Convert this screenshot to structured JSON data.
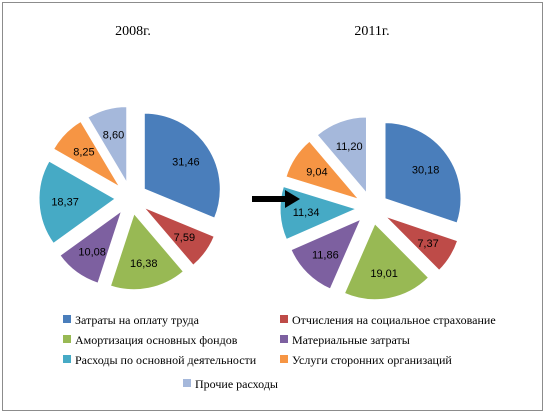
{
  "chart_data": [
    {
      "type": "pie",
      "title": "2008г.",
      "categories": [
        "Затраты на оплату труда",
        "Отчисления на социальное страхование",
        "Амортизация основных фондов",
        "Материальные затраты",
        "Расходы по основной деятельности",
        "Услуги сторонних организаций",
        "Прочие расходы"
      ],
      "values": [
        31.46,
        7.59,
        16.38,
        10.08,
        18.37,
        8.25,
        8.6
      ],
      "labels": [
        "31,46",
        "7,59",
        "16,38",
        "10,08",
        "18,37",
        "8,25",
        "8,60"
      ],
      "legend_position": "bottom"
    },
    {
      "type": "pie",
      "title": "2011г.",
      "categories": [
        "Затраты на оплату труда",
        "Отчисления на социальное страхование",
        "Амортизация основных фондов",
        "Материальные затраты",
        "Расходы по основной деятельности",
        "Услуги сторонних организаций",
        "Прочие расходы"
      ],
      "values": [
        30.18,
        7.37,
        19.01,
        11.86,
        11.34,
        9.04,
        11.2
      ],
      "labels": [
        "30,18",
        "7,37",
        "19,01",
        "11,86",
        "11,34",
        "9,04",
        "11,20"
      ],
      "legend_position": "bottom"
    }
  ],
  "legend": [
    {
      "name": "Затраты на оплату труда",
      "color": "#4a7ebb"
    },
    {
      "name": "Отчисления на социальное страхование",
      "color": "#be4b48"
    },
    {
      "name": "Амортизация основных фондов",
      "color": "#98b954"
    },
    {
      "name": "Материальные затраты",
      "color": "#7d60a0"
    },
    {
      "name": "Расходы по основной деятельности",
      "color": "#46aac5"
    },
    {
      "name": "Услуги сторонних организаций",
      "color": "#f69544"
    },
    {
      "name": "Прочие расходы",
      "color": "#a5b8db"
    }
  ],
  "colors": {
    "arrow": "#000000",
    "slice_stroke": "#ffffff"
  },
  "arrow_icon": "right-arrow-icon"
}
